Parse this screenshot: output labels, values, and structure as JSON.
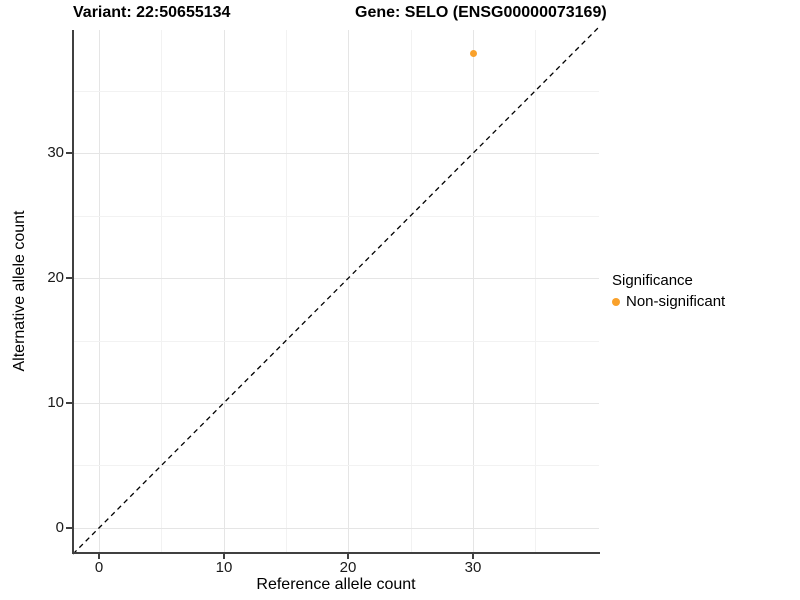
{
  "titles": {
    "variant": "Variant: 22:50655134",
    "gene": "Gene: SELO (ENSG00000073169)"
  },
  "axes": {
    "x": {
      "label": "Reference allele count",
      "ticks": [
        "0",
        "10",
        "20",
        "30"
      ]
    },
    "y": {
      "label": "Alternative allele count",
      "ticks": [
        "0",
        "10",
        "20",
        "30"
      ]
    }
  },
  "legend": {
    "title": "Significance",
    "items": [
      {
        "label": "Non-significant",
        "color": "#F9A12B"
      }
    ]
  },
  "chart_data": {
    "type": "scatter",
    "title": "Variant: 22:50655134 — Gene: SELO (ENSG00000073169)",
    "xlabel": "Reference allele count",
    "ylabel": "Alternative allele count",
    "xlim": [
      -2,
      40
    ],
    "ylim": [
      -2,
      40
    ],
    "x_ticks": [
      0,
      10,
      20,
      30
    ],
    "y_ticks": [
      0,
      10,
      20,
      30
    ],
    "grid": "major+minor, light grey on white",
    "reference_line": {
      "type": "identity y=x",
      "style": "dashed",
      "color": "#000000"
    },
    "series": [
      {
        "name": "Non-significant",
        "color": "#F9A12B",
        "points": [
          {
            "x": 30,
            "y": 38
          }
        ]
      }
    ],
    "points": [
      {
        "x": 30,
        "y": 38,
        "significance": "Non-significant",
        "color": "#F9A12B"
      }
    ],
    "legend_position": "right"
  },
  "colors": {
    "point_orange": "#F9A12B",
    "axis_line": "#404040",
    "grid_major": "#e5e5e5",
    "grid_minor": "#f2f2f2",
    "background": "#ffffff"
  }
}
